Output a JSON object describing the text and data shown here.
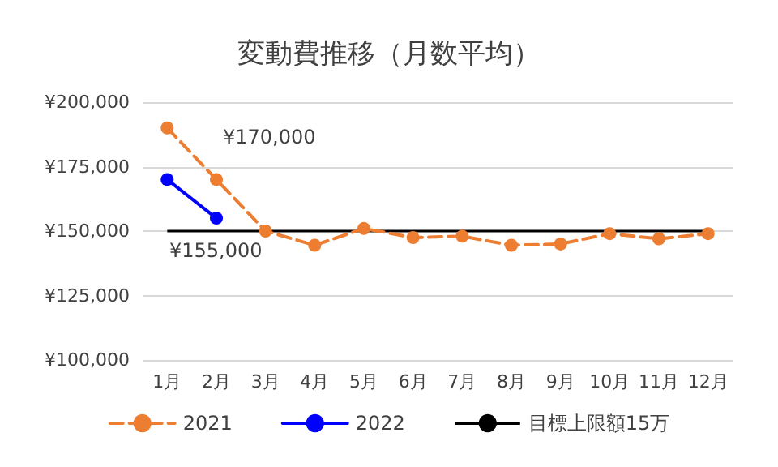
{
  "chart_data": {
    "type": "line",
    "title": "変動費推移（月数平均）",
    "categories": [
      "1月",
      "2月",
      "3月",
      "4月",
      "5月",
      "6月",
      "7月",
      "8月",
      "9月",
      "10月",
      "11月",
      "12月"
    ],
    "series": [
      {
        "name": "2021",
        "color": "#ed7d31",
        "line_style": "dashed",
        "values": [
          190000,
          170000,
          150000,
          144500,
          151000,
          147500,
          148000,
          144500,
          145000,
          149000,
          147000,
          149000
        ],
        "value_labels": [
          null,
          "¥170,000",
          null,
          null,
          null,
          null,
          null,
          null,
          null,
          null,
          null,
          null
        ]
      },
      {
        "name": "2022",
        "color": "#0000ff",
        "line_style": "solid",
        "values": [
          170000,
          155000,
          null,
          null,
          null,
          null,
          null,
          null,
          null,
          null,
          null,
          null
        ],
        "value_labels": [
          null,
          "¥155,000",
          null,
          null,
          null,
          null,
          null,
          null,
          null,
          null,
          null,
          null
        ]
      }
    ],
    "ref_lines": [
      {
        "axis": "y",
        "value": 150000,
        "label": "目標上限額15万",
        "color": "#000000"
      }
    ],
    "ylim": [
      100000,
      200000
    ],
    "yticks": [
      {
        "value": 100000,
        "label": "¥100,000"
      },
      {
        "value": 125000,
        "label": "¥125,000"
      },
      {
        "value": 150000,
        "label": "¥150,000"
      },
      {
        "value": 175000,
        "label": "¥175,000"
      },
      {
        "value": 200000,
        "label": "¥200,000"
      }
    ],
    "grid": "y",
    "legend": "bottom",
    "marker": "circle"
  }
}
